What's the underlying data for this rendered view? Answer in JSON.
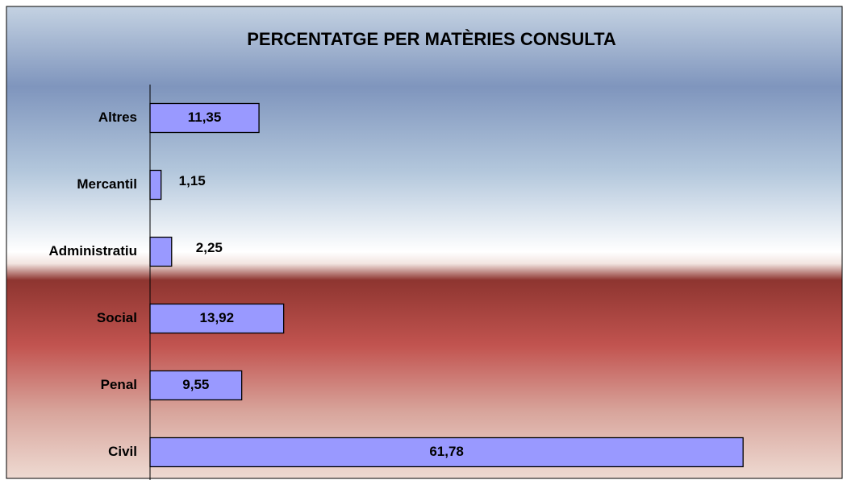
{
  "chart_data": {
    "type": "bar",
    "orientation": "horizontal",
    "title": "PERCENTATGE PER MATÈRIES CONSULTA",
    "categories": [
      "Altres",
      "Mercantil",
      "Administratiu",
      "Social",
      "Penal",
      "Civil"
    ],
    "values": [
      11.35,
      1.15,
      2.25,
      13.92,
      9.55,
      61.78
    ],
    "value_labels": [
      "11,35",
      "1,15",
      "2,25",
      "13,92",
      "9,55",
      "61,78"
    ],
    "color": "#9999ff",
    "xlim": [
      0,
      70
    ]
  }
}
